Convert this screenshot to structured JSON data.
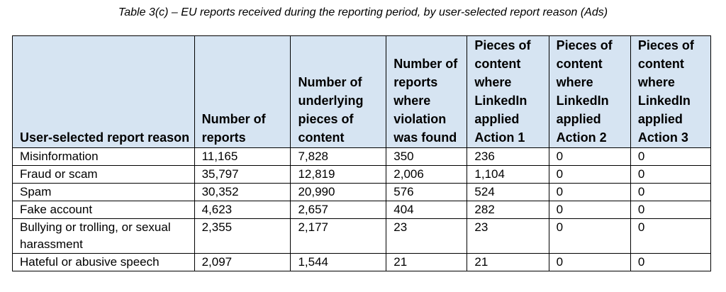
{
  "caption": "Table 3(c) – EU reports received during the reporting period, by user-selected report reason (Ads)",
  "table": {
    "headers": [
      "User-selected report reason",
      "Number of reports",
      "Number of underlying pieces of content",
      "Number of reports where violation was found",
      "Pieces of content where LinkedIn applied Action 1",
      "Pieces of content where LinkedIn applied Action 2",
      "Pieces of content where LinkedIn applied Action 3"
    ],
    "rows": [
      [
        "Misinformation",
        "11,165",
        "7,828",
        "350",
        "236",
        "0",
        "0"
      ],
      [
        "Fraud or scam",
        "35,797",
        "12,819",
        "2,006",
        "1,104",
        "0",
        "0"
      ],
      [
        "Spam",
        "30,352",
        "20,990",
        "576",
        "524",
        "0",
        "0"
      ],
      [
        "Fake account",
        "4,623",
        "2,657",
        "404",
        "282",
        "0",
        "0"
      ],
      [
        "Bullying or trolling, or sexual harassment",
        "2,355",
        "2,177",
        "23",
        "23",
        "0",
        "0"
      ],
      [
        "Hateful or abusive speech",
        "2,097",
        "1,544",
        "21",
        "21",
        "0",
        "0"
      ]
    ]
  }
}
